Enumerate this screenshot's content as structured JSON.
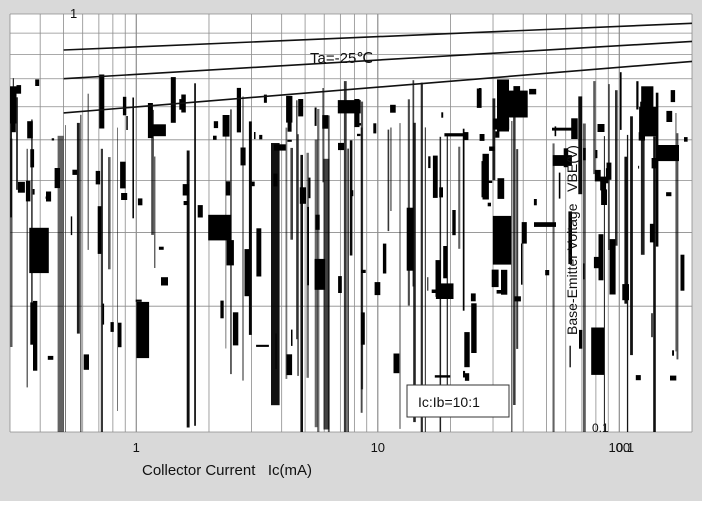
{
  "chart_data": {
    "type": "line",
    "xlabel": "Collector Current   Ic(mA)",
    "ylabel": "Base-Emitter Voltage   VBE(V)",
    "x_scale": "log",
    "y_scale": "log",
    "xlim": [
      0.3,
      200
    ],
    "ylim": [
      0.1,
      1
    ],
    "x_ticks": [
      "1",
      "10",
      "100"
    ],
    "x_tick_values": [
      1,
      10,
      100
    ],
    "y_tick_top": "1",
    "y_tick_bottom": "0.1",
    "right_x_tick": "0.1",
    "condition_label": "Ic:Ib=10:1",
    "annotations": [
      "Ta=-25℃"
    ],
    "grid": true,
    "series": [
      {
        "x": [
          0.5,
          200
        ],
        "y": [
          0.82,
          0.95
        ]
      },
      {
        "x": [
          0.5,
          200
        ],
        "y": [
          0.7,
          0.86
        ]
      },
      {
        "x": [
          0.5,
          200
        ],
        "y": [
          0.58,
          0.77
        ]
      }
    ]
  },
  "colors": {
    "plot_background": "#ffffff",
    "outer_background": "#d9d9d9",
    "grid": "#8c8c8c",
    "line": "#111111",
    "noise": "#000000"
  }
}
